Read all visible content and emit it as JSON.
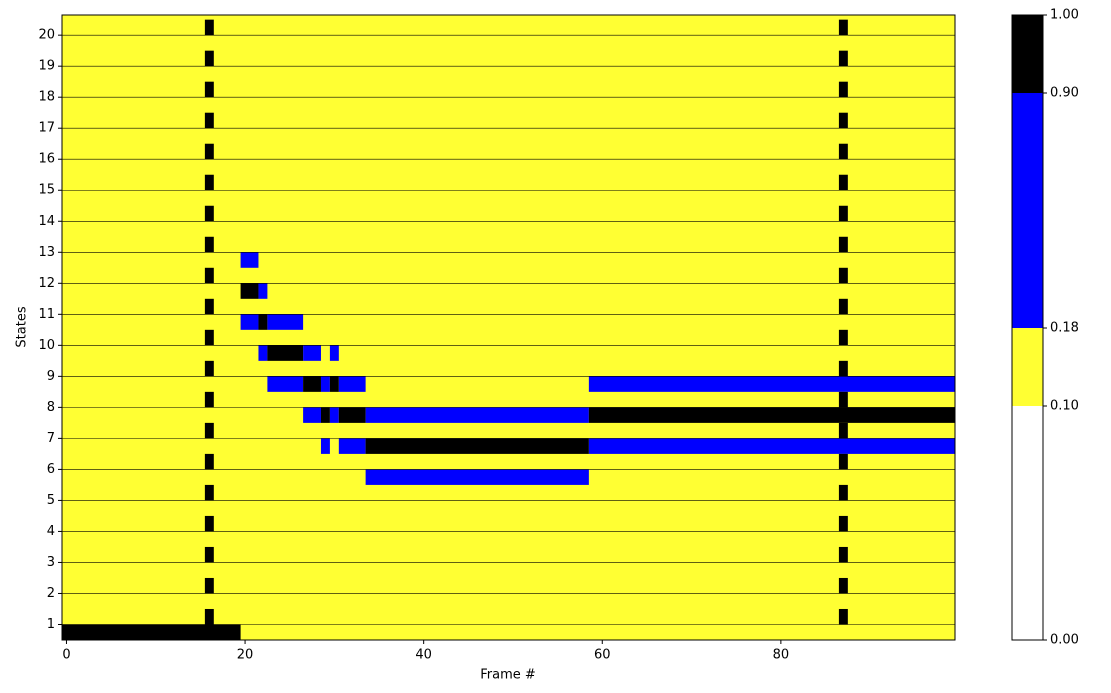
{
  "chart_data": {
    "type": "heatmap",
    "xlabel": "Frame #",
    "ylabel": "States",
    "xlim": [
      -0.5,
      99.5
    ],
    "xticks": [
      0,
      20,
      40,
      60,
      80
    ],
    "ylim": [
      0.5,
      20.65
    ],
    "yticks": [
      1,
      2,
      3,
      4,
      5,
      6,
      7,
      8,
      9,
      10,
      11,
      12,
      13,
      14,
      15,
      16,
      17,
      18,
      19,
      20
    ],
    "grid": true,
    "background": "#ffff33",
    "marker_frames": [
      16,
      87
    ],
    "marker_color": "#000000",
    "segments": [
      {
        "state": 1,
        "frames": [
          0,
          19
        ],
        "color": "#000000"
      },
      {
        "state": 13,
        "frames": [
          20,
          21
        ],
        "color": "#0000ff"
      },
      {
        "state": 12,
        "frames": [
          20,
          21
        ],
        "color": "#000000"
      },
      {
        "state": 12,
        "frames": [
          22,
          22
        ],
        "color": "#0000ff"
      },
      {
        "state": 11,
        "frames": [
          20,
          21
        ],
        "color": "#0000ff"
      },
      {
        "state": 11,
        "frames": [
          22,
          22
        ],
        "color": "#000000"
      },
      {
        "state": 11,
        "frames": [
          23,
          26
        ],
        "color": "#0000ff"
      },
      {
        "state": 10,
        "frames": [
          22,
          22
        ],
        "color": "#0000ff"
      },
      {
        "state": 10,
        "frames": [
          23,
          26
        ],
        "color": "#000000"
      },
      {
        "state": 10,
        "frames": [
          27,
          28
        ],
        "color": "#0000ff"
      },
      {
        "state": 10,
        "frames": [
          30,
          30
        ],
        "color": "#0000ff"
      },
      {
        "state": 9,
        "frames": [
          23,
          26
        ],
        "color": "#0000ff"
      },
      {
        "state": 9,
        "frames": [
          27,
          28
        ],
        "color": "#000000"
      },
      {
        "state": 9,
        "frames": [
          29,
          29
        ],
        "color": "#0000ff"
      },
      {
        "state": 9,
        "frames": [
          30,
          30
        ],
        "color": "#000000"
      },
      {
        "state": 9,
        "frames": [
          31,
          33
        ],
        "color": "#0000ff"
      },
      {
        "state": 9,
        "frames": [
          59,
          99
        ],
        "color": "#0000ff"
      },
      {
        "state": 8,
        "frames": [
          27,
          28
        ],
        "color": "#0000ff"
      },
      {
        "state": 8,
        "frames": [
          29,
          29
        ],
        "color": "#000000"
      },
      {
        "state": 8,
        "frames": [
          30,
          30
        ],
        "color": "#0000ff"
      },
      {
        "state": 8,
        "frames": [
          31,
          33
        ],
        "color": "#000000"
      },
      {
        "state": 8,
        "frames": [
          34,
          58
        ],
        "color": "#0000ff"
      },
      {
        "state": 8,
        "frames": [
          59,
          99
        ],
        "color": "#000000"
      },
      {
        "state": 7,
        "frames": [
          29,
          29
        ],
        "color": "#0000ff"
      },
      {
        "state": 7,
        "frames": [
          31,
          33
        ],
        "color": "#0000ff"
      },
      {
        "state": 7,
        "frames": [
          34,
          58
        ],
        "color": "#000000"
      },
      {
        "state": 7,
        "frames": [
          59,
          99
        ],
        "color": "#0000ff"
      },
      {
        "state": 6,
        "frames": [
          34,
          58
        ],
        "color": "#0000ff"
      }
    ],
    "colorbar": {
      "boundaries": [
        0,
        0.1,
        0.18,
        0.9,
        1.0
      ],
      "colors": [
        "#ffffff",
        "#ffff33",
        "#0000ff",
        "#000000"
      ],
      "ticks": [
        {
          "value": 0,
          "label": "0.00"
        },
        {
          "value": 0.1,
          "label": "0.10"
        },
        {
          "value": 0.18,
          "label": "0.18"
        },
        {
          "value": 0.9,
          "label": "0.90"
        },
        {
          "value": 1.0,
          "label": "1.00"
        }
      ]
    }
  }
}
